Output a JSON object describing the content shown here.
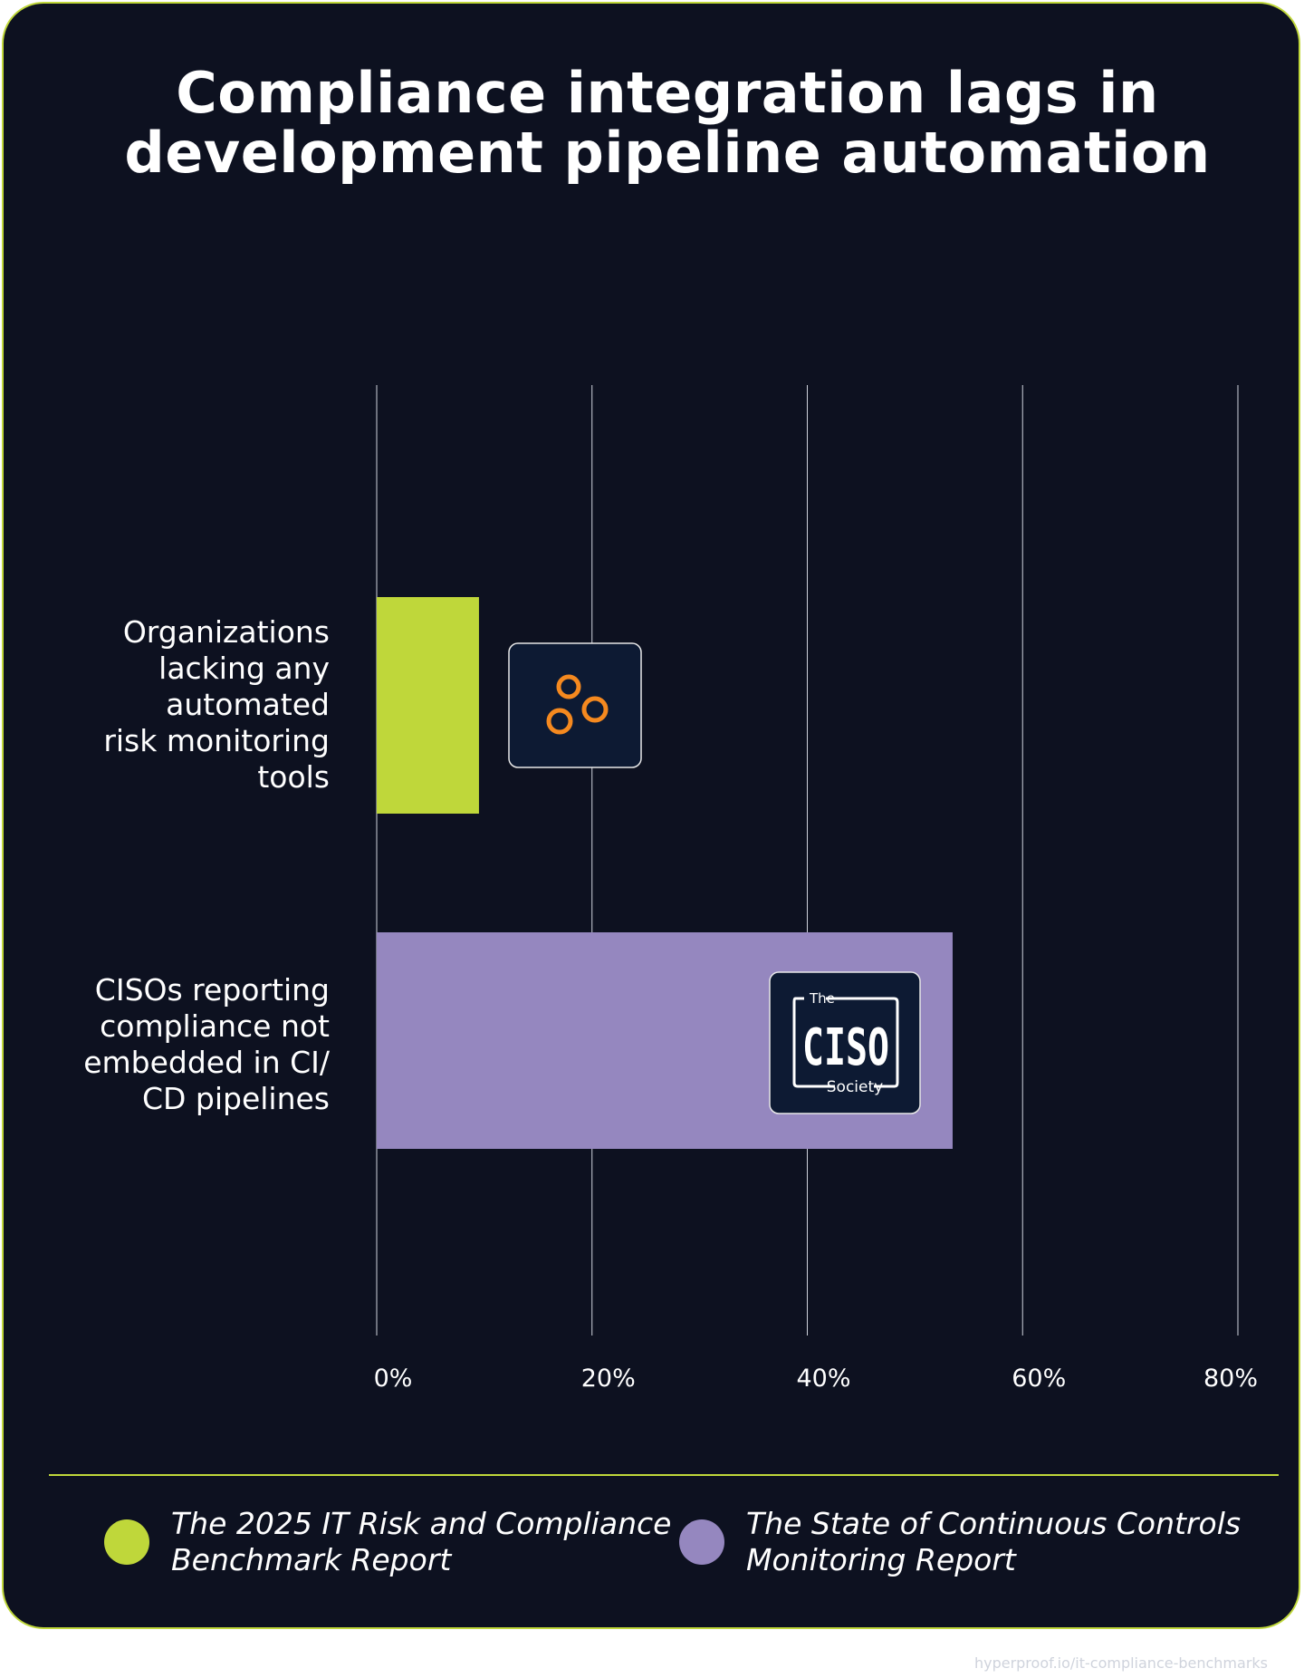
{
  "title_lines": [
    "Compliance integration lags in",
    "development pipeline automation"
  ],
  "colors": {
    "background": "#0d1120",
    "accent": "#bfd73a",
    "series_green": "#bfd73a",
    "series_purple": "#9587bf"
  },
  "chart_data": {
    "type": "bar",
    "orientation": "horizontal",
    "title": "Compliance integration lags in development pipeline automation",
    "categories": [
      "Organizations lacking any automated risk monitoring tools",
      "CISOs reporting compliance not embedded in CI/CD pipelines"
    ],
    "category_label_lines": [
      [
        "Organizations",
        "lacking any",
        "automated",
        "risk monitoring",
        "tools"
      ],
      [
        "CISOs reporting",
        "compliance not",
        "embedded in CI/",
        "CD pipelines"
      ]
    ],
    "values": [
      9.5,
      53.5
    ],
    "bar_colors": [
      "#bfd73a",
      "#9587bf"
    ],
    "bar_icons": [
      "three-circles-logo-icon",
      "ciso-society-logo-icon"
    ],
    "xlim": [
      0,
      80
    ],
    "xticks": [
      0,
      20,
      40,
      60,
      80
    ],
    "xtick_labels": [
      "0%",
      "20%",
      "40%",
      "60%",
      "80%"
    ],
    "grid": true,
    "legend_placement": "bottom",
    "legend": [
      {
        "lines": [
          "The 2025 IT Risk and Compliance",
          "Benchmark Report"
        ],
        "color": "#bfd73a"
      },
      {
        "lines": [
          "The State of Continuous Controls",
          "Monitoring Report"
        ],
        "color": "#9587bf"
      }
    ]
  },
  "logos": {
    "ciso_small_text": "The",
    "ciso_main_text": "CISO",
    "ciso_sub_text": "Society"
  },
  "footer_url": "hyperproof.io/it-compliance-benchmarks"
}
